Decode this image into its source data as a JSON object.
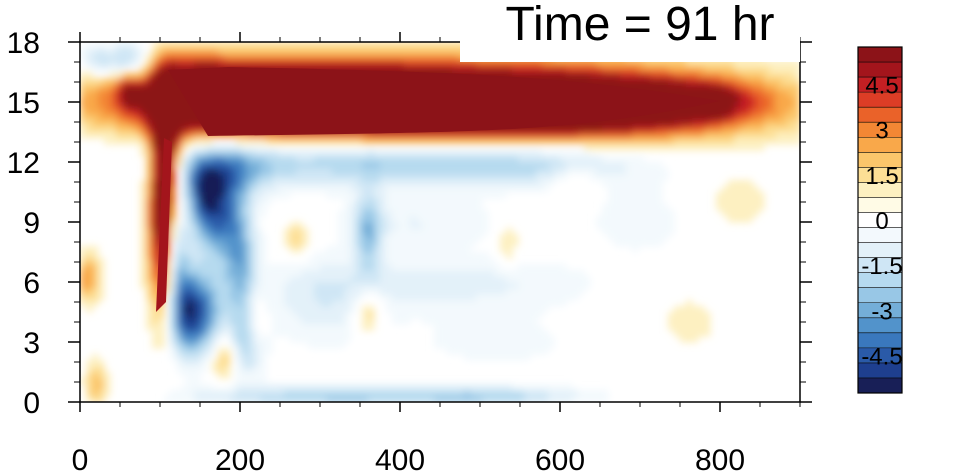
{
  "chart_data": {
    "type": "heatmap",
    "title": "Time = 91 hr",
    "xlabel": "",
    "ylabel": "",
    "xlim": [
      0,
      900
    ],
    "ylim": [
      0,
      18
    ],
    "x_ticks": [
      0,
      200,
      400,
      600,
      800
    ],
    "y_ticks": [
      0,
      3,
      6,
      9,
      12,
      15,
      18
    ],
    "colorbar": {
      "levels": [
        -5.5,
        -5,
        -4.5,
        -4,
        -3.5,
        -3,
        -2.5,
        -2,
        -1.5,
        -1,
        -0.5,
        0,
        0.5,
        1,
        1.5,
        2,
        2.5,
        3,
        3.5,
        4,
        4.5,
        5,
        5.5
      ],
      "labeled": [
        4.5,
        3,
        1.5,
        0,
        -1.5,
        -3,
        -4.5
      ],
      "labels": [
        "4.5",
        "3",
        "1.5",
        "0",
        "-1.5",
        "-3",
        "-4.5"
      ],
      "colors": [
        "#181f57",
        "#1e3f8f",
        "#2a5aa8",
        "#3a78bd",
        "#5293cb",
        "#74aed8",
        "#98c7e6",
        "#b6daef",
        "#cfe6f5",
        "#e3f1f9",
        "#f3f9fd",
        "#ffffff",
        "#fffbe6",
        "#fdf0c1",
        "#fddf95",
        "#fbc66b",
        "#f9a84a",
        "#f38734",
        "#ea6229",
        "#dc3d26",
        "#c41f23",
        "#a3151c",
        "#8c1318"
      ]
    },
    "features": [
      {
        "name": "upper positive band",
        "x": [
          110,
          800
        ],
        "y": [
          13.3,
          16.6
        ],
        "value": 5.5
      },
      {
        "name": "lower positive column",
        "x": [
          95,
          115
        ],
        "y": [
          4.5,
          13
        ],
        "value": 5
      },
      {
        "name": "negative band below jet",
        "x": [
          130,
          650
        ],
        "y": [
          11,
          13
        ],
        "value": -2.5
      },
      {
        "name": "disturbed region negatives",
        "x": [
          100,
          250
        ],
        "y": [
          1,
          11
        ],
        "value": -4.5
      },
      {
        "name": "near-surface negative strip",
        "x": [
          230,
          620
        ],
        "y": [
          0,
          0.7
        ],
        "value": -2.5
      }
    ]
  }
}
